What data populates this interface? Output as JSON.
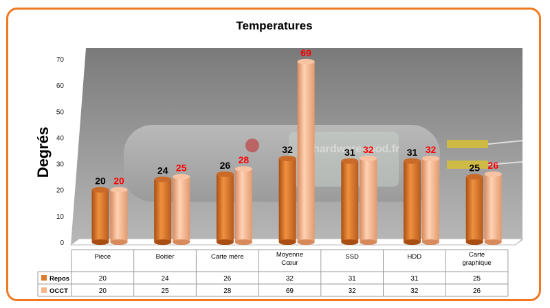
{
  "chart_data": {
    "type": "bar",
    "title": "Temperatures",
    "ylabel": "Degrés",
    "xlabel": "",
    "ylim": [
      0,
      70
    ],
    "yticks": [
      0,
      10,
      20,
      30,
      40,
      50,
      60,
      70
    ],
    "categories": [
      [
        "Piece"
      ],
      [
        "Boitier"
      ],
      [
        "Carte mère"
      ],
      [
        "Moyenne",
        "Cœur"
      ],
      [
        "SSD"
      ],
      [
        "HDD"
      ],
      [
        "Carte",
        "graphique"
      ]
    ],
    "series": [
      {
        "name": "Repos",
        "values": [
          20,
          24,
          26,
          32,
          31,
          31,
          25
        ],
        "color": "#e07a2e",
        "label_color": "#000000"
      },
      {
        "name": "OCCT",
        "values": [
          20,
          25,
          28,
          69,
          32,
          32,
          26
        ],
        "color": "#f9b48a",
        "label_color": "#ff0000"
      }
    ],
    "legend": "data-table",
    "background_watermark": "hardware-mod.fr"
  }
}
